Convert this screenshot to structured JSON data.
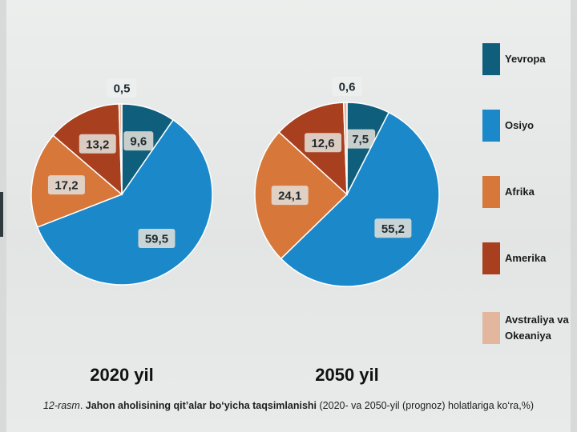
{
  "chart_data": [
    {
      "type": "pie",
      "title": "2020 yil",
      "categories": [
        "Yevropa",
        "Osiyo",
        "Afrika",
        "Amerika",
        "Avstraliya va Okeaniya"
      ],
      "values": [
        9.6,
        59.5,
        17.2,
        13.2,
        0.5
      ],
      "value_labels": [
        "9,6",
        "59,5",
        "17,2",
        "13,2",
        "0,5"
      ],
      "start": "12 o'clock",
      "direction": "clockwise"
    },
    {
      "type": "pie",
      "title": "2050 yil",
      "categories": [
        "Yevropa",
        "Osiyo",
        "Afrika",
        "Amerika",
        "Avstraliya va Okeaniya"
      ],
      "values": [
        7.5,
        55.2,
        24.1,
        12.6,
        0.6
      ],
      "value_labels": [
        "7,5",
        "55,2",
        "24,1",
        "12,6",
        "0,6"
      ],
      "start": "12 o'clock",
      "direction": "clockwise"
    }
  ],
  "legend": {
    "placement": "right",
    "items": [
      {
        "label": "Yevropa",
        "color": "#0f5f7c"
      },
      {
        "label": "Osiyo",
        "color": "#1a88c9"
      },
      {
        "label": "Afrika",
        "color": "#d8773a"
      },
      {
        "label": "Amerika",
        "color": "#a8401f"
      },
      {
        "label": "Avstraliya va Okeaniya",
        "color": "#e2b79e"
      }
    ]
  },
  "caption": {
    "figure_number": "12-rasm",
    "title": "Jahon aholisining qit’alar bo‘yicha taqsimlanishi",
    "rest": "(2020- va 2050-yil (prognoz) holatlariga ko‘ra,%)"
  }
}
